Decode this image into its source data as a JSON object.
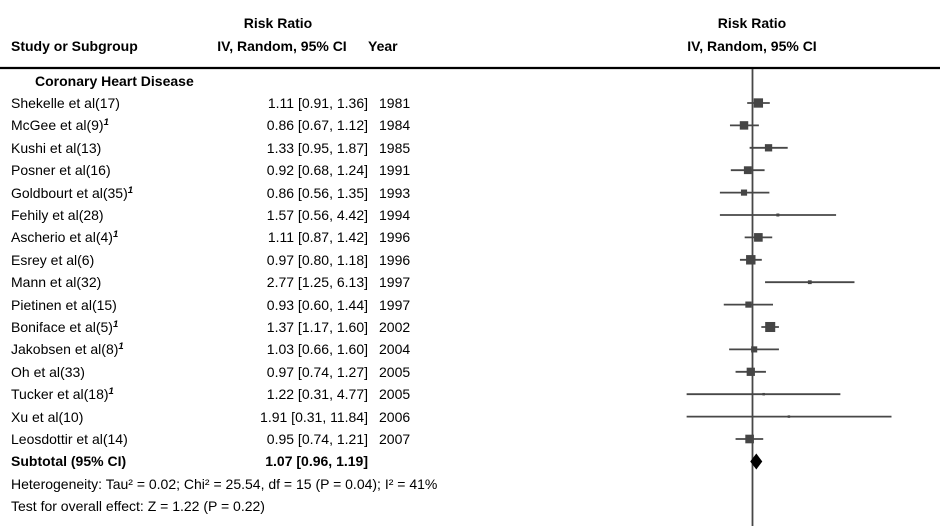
{
  "header": {
    "left": {
      "risk_ratio": "Risk Ratio",
      "method": "IV, Random, 95% CI",
      "study": "Study or Subgroup",
      "year": "Year"
    },
    "right": {
      "risk_ratio": "Risk Ratio",
      "method": "IV, Random, 95% CI"
    }
  },
  "subgroup_title": "Coronary Heart Disease",
  "chart_data": {
    "type": "forest",
    "x_scale": "log10",
    "null_line_value": 1.0,
    "x_axis_labels_visible": false,
    "effect_measure": "Risk Ratio",
    "model": "IV, Random, 95% CI",
    "studies": [
      {
        "label": "Shekelle et al(17)",
        "sup": "",
        "rr": 1.11,
        "ci_low": 0.91,
        "ci_high": 1.36,
        "year": "1981",
        "est": "1.11 [0.91, 1.36]"
      },
      {
        "label": "McGee et al(9)",
        "sup": "1",
        "rr": 0.86,
        "ci_low": 0.67,
        "ci_high": 1.12,
        "year": "1984",
        "est": "0.86 [0.67, 1.12]"
      },
      {
        "label": "Kushi et al(13)",
        "sup": "",
        "rr": 1.33,
        "ci_low": 0.95,
        "ci_high": 1.87,
        "year": "1985",
        "est": "1.33 [0.95, 1.87]"
      },
      {
        "label": "Posner et al(16)",
        "sup": "",
        "rr": 0.92,
        "ci_low": 0.68,
        "ci_high": 1.24,
        "year": "1991",
        "est": "0.92 [0.68, 1.24]"
      },
      {
        "label": "Goldbourt et al(35)",
        "sup": "1",
        "rr": 0.86,
        "ci_low": 0.56,
        "ci_high": 1.35,
        "year": "1993",
        "est": "0.86 [0.56, 1.35]"
      },
      {
        "label": "Fehily et al(28)",
        "sup": "",
        "rr": 1.57,
        "ci_low": 0.56,
        "ci_high": 4.42,
        "year": "1994",
        "est": "1.57 [0.56, 4.42]"
      },
      {
        "label": "Ascherio et al(4)",
        "sup": "1",
        "rr": 1.11,
        "ci_low": 0.87,
        "ci_high": 1.42,
        "year": "1996",
        "est": "1.11 [0.87, 1.42]"
      },
      {
        "label": "Esrey et al(6)",
        "sup": "",
        "rr": 0.97,
        "ci_low": 0.8,
        "ci_high": 1.18,
        "year": "1996",
        "est": "0.97 [0.80, 1.18]"
      },
      {
        "label": "Mann et al(32)",
        "sup": "",
        "rr": 2.77,
        "ci_low": 1.25,
        "ci_high": 6.13,
        "year": "1997",
        "est": "2.77 [1.25, 6.13]"
      },
      {
        "label": "Pietinen et al(15)",
        "sup": "",
        "rr": 0.93,
        "ci_low": 0.6,
        "ci_high": 1.44,
        "year": "1997",
        "est": "0.93 [0.60, 1.44]"
      },
      {
        "label": "Boniface et al(5)",
        "sup": "1",
        "rr": 1.37,
        "ci_low": 1.17,
        "ci_high": 1.6,
        "year": "2002",
        "est": "1.37 [1.17, 1.60]"
      },
      {
        "label": "Jakobsen et al(8)",
        "sup": "1",
        "rr": 1.03,
        "ci_low": 0.66,
        "ci_high": 1.6,
        "year": "2004",
        "est": "1.03 [0.66, 1.60]"
      },
      {
        "label": "Oh et al(33)",
        "sup": "",
        "rr": 0.97,
        "ci_low": 0.74,
        "ci_high": 1.27,
        "year": "2005",
        "est": "0.97 [0.74, 1.27]"
      },
      {
        "label": "Tucker et al(18)",
        "sup": "1",
        "rr": 1.22,
        "ci_low": 0.31,
        "ci_high": 4.77,
        "year": "2005",
        "est": "1.22 [0.31, 4.77]"
      },
      {
        "label": "Xu et al(10)",
        "sup": "",
        "rr": 1.91,
        "ci_low": 0.31,
        "ci_high": 11.84,
        "year": "2006",
        "est": "1.91 [0.31, 11.84]"
      },
      {
        "label": "Leosdottir et al(14)",
        "sup": "",
        "rr": 0.95,
        "ci_low": 0.74,
        "ci_high": 1.21,
        "year": "2007",
        "est": "0.95 [0.74, 1.21]"
      }
    ],
    "subtotal": {
      "label": "Subtotal (95% CI)",
      "rr": 1.07,
      "ci_low": 0.96,
      "ci_high": 1.19,
      "est": "1.07 [0.96, 1.19]"
    },
    "random_effects_tau2": 0.02
  },
  "footer": {
    "heterogeneity": "Heterogeneity: Tau² = 0.02; Chi² = 25.54, df = 15 (P = 0.04); I² = 41%",
    "overall_effect": "Test for overall effect: Z = 1.22 (P = 0.22)"
  },
  "colors": {
    "ci_line": "#474747",
    "null_line": "#474747",
    "marker": "#454545",
    "diamond": "#000000",
    "separator": "#000000",
    "text": "#000000"
  }
}
